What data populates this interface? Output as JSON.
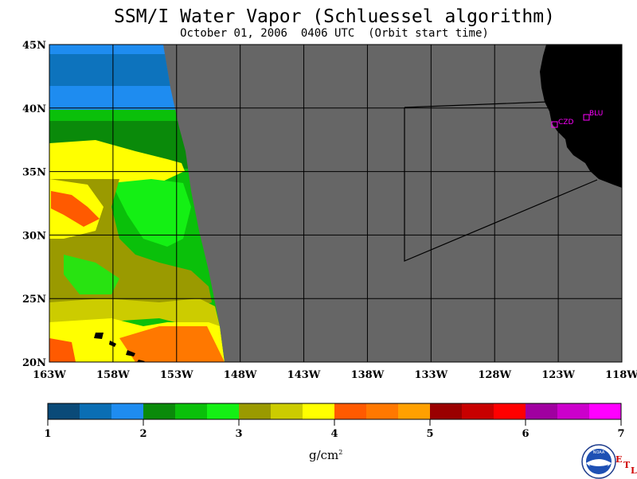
{
  "title": "SSM/I Water Vapor (Schluessel algorithm)",
  "subtitle": "October 01, 2006  0406 UTC  (Orbit start time)",
  "map": {
    "lat_labels": [
      "45N",
      "40N",
      "35N",
      "30N",
      "25N",
      "20N"
    ],
    "lon_labels": [
      "163W",
      "158W",
      "153W",
      "148W",
      "143W",
      "138W",
      "133W",
      "128W",
      "123W",
      "118W"
    ],
    "stations": [
      {
        "id": "CZD",
        "label": "CZD"
      },
      {
        "id": "BLU",
        "label": "BLU"
      }
    ],
    "colors": {
      "no_data": "#666666",
      "land": "#000000",
      "station": "#ff00ff"
    }
  },
  "colorbar": {
    "units": "g/cm",
    "units_exp": "2",
    "tick_labels": [
      "1",
      "2",
      "3",
      "4",
      "5",
      "6",
      "7"
    ],
    "colors": [
      "#0a4a78",
      "#0a6eb4",
      "#1e8cf0",
      "#0a8a0a",
      "#0ac00a",
      "#14f014",
      "#9a9a00",
      "#cccc00",
      "#ffff00",
      "#ff5a00",
      "#ff7800",
      "#ffa000",
      "#9a0000",
      "#c80000",
      "#ff0000",
      "#a000a0",
      "#cc00cc",
      "#ff00ff"
    ]
  },
  "logo": {
    "text": "NOAA"
  },
  "etl": {
    "e": "E",
    "t": "T",
    "l": "L"
  }
}
